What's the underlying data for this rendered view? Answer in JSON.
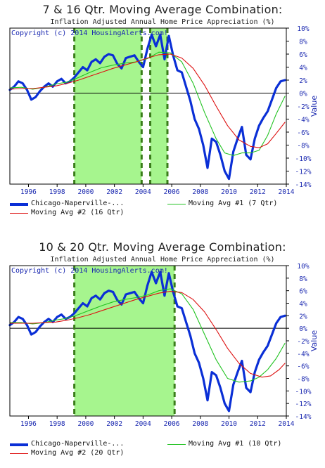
{
  "colors": {
    "chicago": "#0a2fd6",
    "ma1": "#22c322",
    "ma2": "#dd1111",
    "shade": "#a6f58e",
    "dashes": "#3a7d1a",
    "axis_text": "#1a28b0"
  },
  "chart_data": [
    {
      "type": "line",
      "title": "7 & 16 Qtr. Moving Average Combination:",
      "subtitle": "Inflation Adjusted Annual Home Price Appreciation (%)",
      "ylabel": "Value",
      "copyright": "Copyright (c) 2014 HousingAlerts.com!",
      "xlim": [
        1994.7,
        2014.0
      ],
      "ylim": [
        -14,
        10
      ],
      "x_ticks": [
        1996,
        1998,
        2000,
        2002,
        2004,
        2006,
        2008,
        2010,
        2012,
        2014
      ],
      "x_tick_labels": [
        "1996",
        "1998",
        "2000",
        "2002",
        "2004",
        "2006",
        "2008",
        "2010",
        "2012",
        "2014"
      ],
      "y_ticks": [
        -14,
        -12,
        -10,
        -8,
        -6,
        -4,
        -2,
        0,
        2,
        4,
        6,
        8,
        10
      ],
      "y_tick_labels": [
        "-14%",
        "-12%",
        "-10%",
        "-8%",
        "-6%",
        "-4%",
        "-2%",
        "0%",
        "2%",
        "4%",
        "6%",
        "8%",
        "10%"
      ],
      "shaded_regions": [
        [
          1999.2,
          2003.9
        ],
        [
          2004.5,
          2005.7
        ]
      ],
      "dashed_lines": [
        1999.2,
        2003.9,
        2004.5,
        2005.7
      ],
      "legend": [
        "Chicago-Naperville-...",
        "Moving Avg #1 (7 Qtr)",
        "Moving Avg #2 (16 Qtr)"
      ],
      "series": [
        {
          "name": "Chicago-Naperville-...",
          "color_key": "chicago",
          "width": 3.2,
          "x": [
            1994.7,
            1995.0,
            1995.3,
            1995.6,
            1995.9,
            1996.2,
            1996.5,
            1996.8,
            1997.1,
            1997.4,
            1997.7,
            1998.0,
            1998.3,
            1998.6,
            1998.9,
            1999.2,
            1999.5,
            1999.8,
            2000.1,
            2000.4,
            2000.7,
            2001.0,
            2001.3,
            2001.6,
            2001.9,
            2002.2,
            2002.5,
            2002.8,
            2003.1,
            2003.4,
            2003.7,
            2004.0,
            2004.3,
            2004.6,
            2004.9,
            2005.2,
            2005.5,
            2005.8,
            2006.1,
            2006.4,
            2006.7,
            2007.0,
            2007.3,
            2007.6,
            2007.9,
            2008.2,
            2008.5,
            2008.8,
            2009.1,
            2009.4,
            2009.7,
            2010.0,
            2010.3,
            2010.6,
            2010.9,
            2011.2,
            2011.5,
            2011.8,
            2012.1,
            2012.4,
            2012.7,
            2013.0,
            2013.3,
            2013.6,
            2013.9
          ],
          "y": [
            0.5,
            1.0,
            1.8,
            1.5,
            0.5,
            -1.0,
            -0.6,
            0.3,
            1.0,
            1.5,
            1.0,
            1.8,
            2.2,
            1.5,
            1.8,
            2.4,
            3.2,
            4.0,
            3.5,
            4.8,
            5.2,
            4.6,
            5.6,
            6.0,
            5.8,
            4.5,
            3.8,
            5.4,
            5.6,
            5.8,
            4.8,
            4.0,
            6.8,
            9.0,
            7.2,
            9.0,
            5.2,
            8.8,
            5.8,
            3.5,
            3.2,
            1.0,
            -1.2,
            -4.0,
            -5.5,
            -8.0,
            -11.5,
            -7.0,
            -7.5,
            -9.5,
            -12.0,
            -13.2,
            -9.0,
            -7.0,
            -5.2,
            -9.5,
            -10.2,
            -7.0,
            -5.0,
            -3.8,
            -2.8,
            -1.0,
            0.8,
            1.8,
            2.0
          ]
        },
        {
          "name": "Moving Avg #1 (7 Qtr)",
          "color_key": "ma1",
          "width": 1.1,
          "x": [
            1994.7,
            1995.5,
            1996.3,
            1997.1,
            1997.9,
            1998.7,
            1999.5,
            2000.3,
            2001.1,
            2001.9,
            2002.7,
            2003.5,
            2004.3,
            2005.1,
            2005.9,
            2006.7,
            2007.5,
            2008.3,
            2009.1,
            2009.7,
            2010.3,
            2010.9,
            2011.5,
            2012.1,
            2012.7,
            2013.3,
            2013.9
          ],
          "y": [
            0.8,
            0.9,
            0.6,
            0.9,
            1.4,
            1.7,
            2.4,
            3.2,
            3.9,
            4.3,
            4.6,
            4.8,
            5.3,
            6.3,
            6.2,
            4.8,
            1.5,
            -3.0,
            -7.0,
            -9.2,
            -9.6,
            -9.2,
            -9.2,
            -8.8,
            -6.5,
            -3.2,
            -0.5
          ]
        },
        {
          "name": "Moving Avg #2 (16 Qtr)",
          "color_key": "ma2",
          "width": 1.1,
          "x": [
            1994.7,
            1995.5,
            1996.3,
            1997.1,
            1997.9,
            1998.7,
            1999.5,
            2000.3,
            2001.1,
            2001.9,
            2002.7,
            2003.5,
            2004.3,
            2005.1,
            2005.9,
            2006.7,
            2007.5,
            2008.3,
            2009.1,
            2009.9,
            2010.7,
            2011.5,
            2012.1,
            2012.7,
            2013.3,
            2013.9
          ],
          "y": [
            0.6,
            0.7,
            0.7,
            0.9,
            1.1,
            1.5,
            2.0,
            2.6,
            3.2,
            3.8,
            4.3,
            4.8,
            5.4,
            5.9,
            6.0,
            5.4,
            3.8,
            1.2,
            -2.0,
            -5.0,
            -7.2,
            -8.2,
            -8.4,
            -7.8,
            -6.2,
            -4.5
          ]
        }
      ]
    },
    {
      "type": "line",
      "title": "10 & 20 Qtr. Moving Average Combination:",
      "subtitle": "Inflation Adjusted Annual Home Price Appreciation (%)",
      "ylabel": "Value",
      "copyright": "Copyright (c) 2014 HousingAlerts.com!",
      "xlim": [
        1994.7,
        2014.0
      ],
      "ylim": [
        -14,
        10
      ],
      "x_ticks": [
        1996,
        1998,
        2000,
        2002,
        2004,
        2006,
        2008,
        2010,
        2012,
        2014
      ],
      "x_tick_labels": [
        "1996",
        "1998",
        "2000",
        "2002",
        "2004",
        "2006",
        "2008",
        "2010",
        "2012",
        "2014"
      ],
      "y_ticks": [
        -14,
        -12,
        -10,
        -8,
        -6,
        -4,
        -2,
        0,
        2,
        4,
        6,
        8,
        10
      ],
      "y_tick_labels": [
        "-14%",
        "-12%",
        "-10%",
        "-8%",
        "-6%",
        "-4%",
        "-2%",
        "0%",
        "2%",
        "4%",
        "6%",
        "8%",
        "10%"
      ],
      "shaded_regions": [
        [
          1999.2,
          2006.2
        ]
      ],
      "dashed_lines": [
        1999.2,
        2006.2
      ],
      "legend": [
        "Chicago-Naperville-...",
        "Moving Avg #1 (10 Qtr)",
        "Moving Avg #2 (20 Qtr)"
      ],
      "series": [
        {
          "name": "Chicago-Naperville-...",
          "color_key": "chicago",
          "width": 3.2,
          "x": [
            1994.7,
            1995.0,
            1995.3,
            1995.6,
            1995.9,
            1996.2,
            1996.5,
            1996.8,
            1997.1,
            1997.4,
            1997.7,
            1998.0,
            1998.3,
            1998.6,
            1998.9,
            1999.2,
            1999.5,
            1999.8,
            2000.1,
            2000.4,
            2000.7,
            2001.0,
            2001.3,
            2001.6,
            2001.9,
            2002.2,
            2002.5,
            2002.8,
            2003.1,
            2003.4,
            2003.7,
            2004.0,
            2004.3,
            2004.6,
            2004.9,
            2005.2,
            2005.5,
            2005.8,
            2006.1,
            2006.4,
            2006.7,
            2007.0,
            2007.3,
            2007.6,
            2007.9,
            2008.2,
            2008.5,
            2008.8,
            2009.1,
            2009.4,
            2009.7,
            2010.0,
            2010.3,
            2010.6,
            2010.9,
            2011.2,
            2011.5,
            2011.8,
            2012.1,
            2012.4,
            2012.7,
            2013.0,
            2013.3,
            2013.6,
            2013.9
          ],
          "y": [
            0.5,
            1.0,
            1.8,
            1.5,
            0.5,
            -1.0,
            -0.6,
            0.3,
            1.0,
            1.5,
            1.0,
            1.8,
            2.2,
            1.5,
            1.8,
            2.4,
            3.2,
            4.0,
            3.5,
            4.8,
            5.2,
            4.6,
            5.6,
            6.0,
            5.8,
            4.5,
            3.8,
            5.4,
            5.6,
            5.8,
            4.8,
            4.0,
            6.8,
            9.0,
            7.2,
            9.0,
            5.2,
            8.8,
            5.8,
            3.5,
            3.2,
            1.0,
            -1.2,
            -4.0,
            -5.5,
            -8.0,
            -11.5,
            -7.0,
            -7.5,
            -9.5,
            -12.0,
            -13.2,
            -9.0,
            -7.0,
            -5.2,
            -9.5,
            -10.2,
            -7.0,
            -5.0,
            -3.8,
            -2.8,
            -1.0,
            0.8,
            1.8,
            2.0
          ]
        },
        {
          "name": "Moving Avg #1 (10 Qtr)",
          "color_key": "ma1",
          "width": 1.1,
          "x": [
            1994.7,
            1995.5,
            1996.3,
            1997.1,
            1997.9,
            1998.7,
            1999.5,
            2000.3,
            2001.1,
            2001.9,
            2002.7,
            2003.5,
            2004.3,
            2005.1,
            2005.9,
            2006.7,
            2007.5,
            2008.3,
            2009.1,
            2009.9,
            2010.7,
            2011.5,
            2012.1,
            2012.7,
            2013.3,
            2013.9
          ],
          "y": [
            0.9,
            0.9,
            0.7,
            0.9,
            1.3,
            1.6,
            2.2,
            2.9,
            3.6,
            4.2,
            4.6,
            4.9,
            5.3,
            6.0,
            6.3,
            5.5,
            3.0,
            -1.0,
            -5.0,
            -8.0,
            -8.6,
            -8.4,
            -7.8,
            -6.6,
            -4.8,
            -2.4
          ]
        },
        {
          "name": "Moving Avg #2 (20 Qtr)",
          "color_key": "ma2",
          "width": 1.1,
          "x": [
            1994.7,
            1995.5,
            1996.3,
            1997.1,
            1997.9,
            1998.7,
            1999.5,
            2000.3,
            2001.1,
            2001.9,
            2002.7,
            2003.5,
            2004.3,
            2005.1,
            2005.9,
            2006.7,
            2007.5,
            2008.3,
            2009.1,
            2009.9,
            2010.7,
            2011.5,
            2012.3,
            2012.9,
            2013.5,
            2013.9
          ],
          "y": [
            0.8,
            0.8,
            0.8,
            0.9,
            1.0,
            1.3,
            1.7,
            2.2,
            2.8,
            3.4,
            4.0,
            4.6,
            5.1,
            5.6,
            5.9,
            5.7,
            4.6,
            2.6,
            -0.2,
            -3.2,
            -5.6,
            -7.2,
            -7.8,
            -7.6,
            -6.6,
            -5.6
          ]
        }
      ]
    }
  ]
}
